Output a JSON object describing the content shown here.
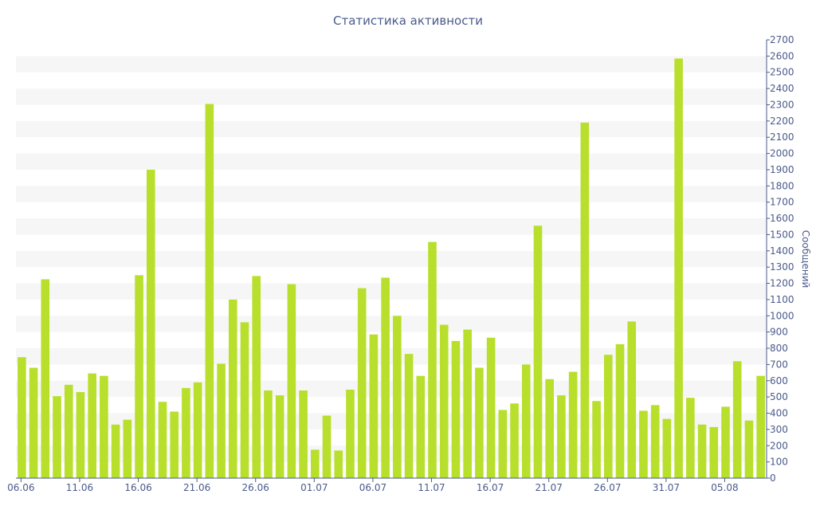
{
  "chart_data": {
    "type": "bar",
    "title": "Статистика активности",
    "xlabel": "",
    "ylabel": "Сообщений",
    "ylim": [
      0,
      2700
    ],
    "y_ticks": [
      0,
      100,
      200,
      300,
      400,
      500,
      600,
      700,
      800,
      900,
      1000,
      1100,
      1200,
      1300,
      1400,
      1500,
      1600,
      1700,
      1800,
      1900,
      2000,
      2100,
      2200,
      2300,
      2400,
      2500,
      2600,
      2700
    ],
    "x_tick_labels": [
      {
        "index": 0,
        "label": "06.06"
      },
      {
        "index": 5,
        "label": "11.06"
      },
      {
        "index": 10,
        "label": "16.06"
      },
      {
        "index": 15,
        "label": "21.06"
      },
      {
        "index": 20,
        "label": "26.06"
      },
      {
        "index": 25,
        "label": "01.07"
      },
      {
        "index": 30,
        "label": "06.07"
      },
      {
        "index": 35,
        "label": "11.07"
      },
      {
        "index": 40,
        "label": "16.07"
      },
      {
        "index": 45,
        "label": "21.07"
      },
      {
        "index": 50,
        "label": "26.07"
      },
      {
        "index": 55,
        "label": "31.07"
      },
      {
        "index": 60,
        "label": "05.08"
      }
    ],
    "grid": "alternating horizontal bands",
    "y_axis_position": "right",
    "color": "#b8df2c",
    "values": [
      745,
      680,
      1225,
      505,
      575,
      530,
      645,
      630,
      330,
      360,
      1250,
      1900,
      470,
      410,
      555,
      590,
      2305,
      705,
      1100,
      960,
      1245,
      540,
      510,
      1195,
      540,
      175,
      385,
      170,
      545,
      1170,
      885,
      1235,
      1000,
      765,
      630,
      1455,
      945,
      845,
      915,
      680,
      865,
      420,
      460,
      700,
      1555,
      610,
      510,
      655,
      2190,
      475,
      760,
      825,
      965,
      415,
      450,
      365,
      2585,
      495,
      330,
      315,
      440,
      720,
      355,
      630
    ]
  }
}
